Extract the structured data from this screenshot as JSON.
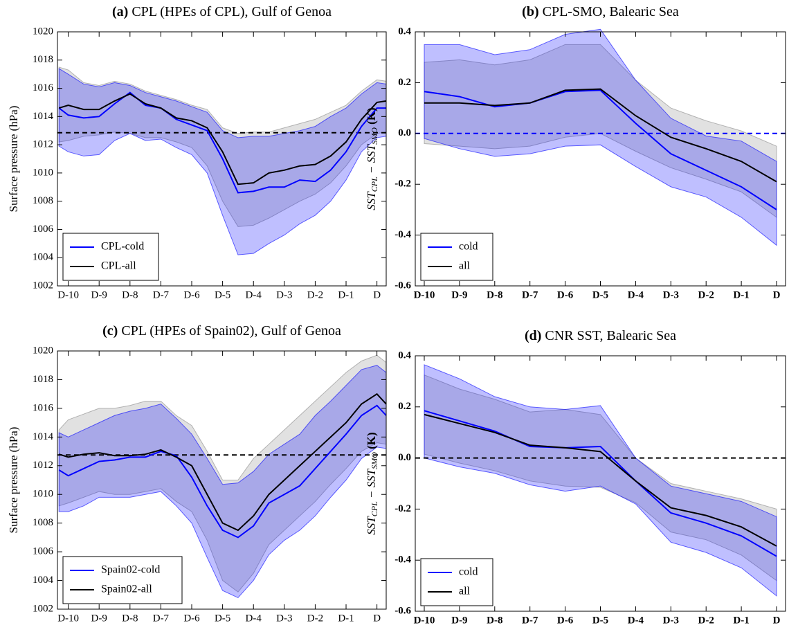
{
  "chart_data": [
    {
      "type": "line",
      "label": "(a)",
      "title": "CPL (HPEs of CPL), Gulf of Genoa",
      "ylabel": [
        "Surface pressure (hPa)"
      ],
      "x": [
        -10.3,
        -10,
        -9.5,
        -9,
        -8.5,
        -8,
        -7.5,
        -7,
        -6.5,
        -6,
        -5.5,
        -5,
        -4.5,
        -4,
        -3.5,
        -3,
        -2.5,
        -2,
        -1.5,
        -1,
        -0.5,
        0,
        0.3
      ],
      "xlim": [
        -10.35,
        0.3
      ],
      "xticks": [
        {
          "value": -10,
          "label": "D-10"
        },
        {
          "value": -9,
          "label": "D-9"
        },
        {
          "value": -8,
          "label": "D-8"
        },
        {
          "value": -7,
          "label": "D-7"
        },
        {
          "value": -6,
          "label": "D-6"
        },
        {
          "value": -5,
          "label": "D-5"
        },
        {
          "value": -4,
          "label": "D-4"
        },
        {
          "value": -3,
          "label": "D-3"
        },
        {
          "value": -2,
          "label": "D-2"
        },
        {
          "value": -1,
          "label": "D-1"
        },
        {
          "value": 0,
          "label": "D"
        }
      ],
      "ylim": [
        1002,
        1020
      ],
      "yticks": [
        1002,
        1004,
        1006,
        1008,
        1010,
        1012,
        1014,
        1016,
        1018,
        1020
      ],
      "hline": {
        "value": 1012.85,
        "color": "#000000"
      },
      "legend": "lower left",
      "bold_ticks": false,
      "series": [
        {
          "name": "CPL-cold",
          "color": "#0000ff",
          "band_color": "#0000ff",
          "values": [
            1014.6,
            1014.1,
            1013.9,
            1014.0,
            1014.9,
            1015.7,
            1014.8,
            1014.6,
            1013.8,
            1013.4,
            1013.0,
            1011.0,
            1008.6,
            1008.7,
            1009.0,
            1009.0,
            1009.5,
            1009.4,
            1010.2,
            1011.5,
            1013.3,
            1014.6,
            1014.6
          ],
          "lower": [
            1011.9,
            1011.5,
            1011.2,
            1011.3,
            1012.3,
            1012.8,
            1012.3,
            1012.4,
            1011.8,
            1011.3,
            1010.0,
            1007.0,
            1004.2,
            1004.3,
            1005.0,
            1005.6,
            1006.4,
            1007.0,
            1008.0,
            1009.5,
            1011.5,
            1012.5,
            1012.6
          ],
          "upper": [
            1017.4,
            1017.0,
            1016.3,
            1016.1,
            1016.4,
            1016.2,
            1015.7,
            1015.4,
            1015.1,
            1014.7,
            1014.3,
            1013.0,
            1012.5,
            1012.6,
            1012.6,
            1012.8,
            1013.0,
            1013.3,
            1014.0,
            1014.6,
            1015.6,
            1016.4,
            1016.3
          ]
        },
        {
          "name": "CPL-all",
          "color": "#000000",
          "band_color": "#888888",
          "values": [
            1014.6,
            1014.8,
            1014.5,
            1014.5,
            1015.1,
            1015.6,
            1014.9,
            1014.6,
            1013.9,
            1013.7,
            1013.2,
            1011.5,
            1009.2,
            1009.3,
            1010.0,
            1010.2,
            1010.5,
            1010.6,
            1011.2,
            1012.2,
            1013.8,
            1015.0,
            1015.1
          ],
          "lower": [
            1012.2,
            1012.3,
            1012.6,
            1012.7,
            1012.9,
            1012.8,
            1012.5,
            1012.5,
            1012.2,
            1011.8,
            1010.5,
            1008.0,
            1006.2,
            1006.3,
            1006.8,
            1007.4,
            1008.0,
            1008.5,
            1009.3,
            1010.5,
            1012.0,
            1012.8,
            1012.9
          ],
          "upper": [
            1017.5,
            1017.3,
            1016.4,
            1016.2,
            1016.5,
            1016.3,
            1015.8,
            1015.5,
            1015.2,
            1014.8,
            1014.5,
            1013.2,
            1012.8,
            1012.9,
            1012.9,
            1013.2,
            1013.5,
            1013.8,
            1014.3,
            1014.8,
            1015.8,
            1016.6,
            1016.5
          ]
        }
      ]
    },
    {
      "type": "line",
      "label": "(b)",
      "title": "CPL-SMO, Balearic Sea",
      "ylabel": [
        "SST",
        "CPL",
        " − SST",
        "SMO",
        " (K)"
      ],
      "categories": [
        "D-10",
        "D-9",
        "D-8",
        "D-7",
        "D-6",
        "D-5",
        "D-4",
        "D-3",
        "D-2",
        "D-1",
        "D"
      ],
      "ylim": [
        -0.6,
        0.4
      ],
      "yticks": [
        -0.6,
        -0.4,
        -0.2,
        {
          "value": 0,
          "label": "0.0"
        },
        0.2,
        0.4
      ],
      "hline": {
        "value": 0,
        "color": "#0000ff"
      },
      "legend": "lower left",
      "bold_ticks": true,
      "series": [
        {
          "name": "cold",
          "color": "#0000ff",
          "band_color": "#0000ff",
          "values": [
            0.165,
            0.145,
            0.105,
            0.12,
            0.165,
            0.17,
            0.04,
            -0.08,
            -0.145,
            -0.21,
            -0.3
          ],
          "lower": [
            -0.02,
            -0.06,
            -0.09,
            -0.08,
            -0.05,
            -0.045,
            -0.13,
            -0.21,
            -0.25,
            -0.33,
            -0.44
          ],
          "upper": [
            0.35,
            0.35,
            0.31,
            0.33,
            0.39,
            0.41,
            0.21,
            0.06,
            -0.01,
            -0.03,
            -0.11
          ]
        },
        {
          "name": "all",
          "color": "#000000",
          "band_color": "#888888",
          "values": [
            0.12,
            0.12,
            0.11,
            0.12,
            0.17,
            0.175,
            0.07,
            -0.015,
            -0.06,
            -0.11,
            -0.19
          ],
          "lower": [
            -0.04,
            -0.05,
            -0.06,
            -0.05,
            -0.015,
            0.0,
            -0.07,
            -0.135,
            -0.18,
            -0.23,
            -0.33
          ],
          "upper": [
            0.28,
            0.29,
            0.27,
            0.29,
            0.35,
            0.35,
            0.21,
            0.1,
            0.05,
            0.01,
            -0.05
          ]
        }
      ]
    },
    {
      "type": "line",
      "label": "(c)",
      "title": "CPL (HPEs of Spain02), Gulf of Genoa",
      "ylabel": [
        "Surface pressure (hPa)"
      ],
      "x": [
        -10.3,
        -10,
        -9.5,
        -9,
        -8.5,
        -8,
        -7.5,
        -7,
        -6.5,
        -6,
        -5.5,
        -5,
        -4.5,
        -4,
        -3.5,
        -3,
        -2.5,
        -2,
        -1.5,
        -1,
        -0.5,
        0,
        0.3
      ],
      "xlim": [
        -10.35,
        0.3
      ],
      "xticks": [
        {
          "value": -10,
          "label": "D-10"
        },
        {
          "value": -9,
          "label": "D-9"
        },
        {
          "value": -8,
          "label": "D-8"
        },
        {
          "value": -7,
          "label": "D-7"
        },
        {
          "value": -6,
          "label": "D-6"
        },
        {
          "value": -5,
          "label": "D-5"
        },
        {
          "value": -4,
          "label": "D-4"
        },
        {
          "value": -3,
          "label": "D-3"
        },
        {
          "value": -2,
          "label": "D-2"
        },
        {
          "value": -1,
          "label": "D-1"
        },
        {
          "value": 0,
          "label": "D"
        }
      ],
      "ylim": [
        1002,
        1020
      ],
      "yticks": [
        1002,
        1004,
        1006,
        1008,
        1010,
        1012,
        1014,
        1016,
        1018,
        1020
      ],
      "hline": {
        "value": 1012.75,
        "color": "#000000"
      },
      "legend": "lower left",
      "bold_ticks": false,
      "series": [
        {
          "name": "Spain02-cold",
          "color": "#0000ff",
          "band_color": "#0000ff",
          "values": [
            1011.7,
            1011.3,
            1011.8,
            1012.3,
            1012.4,
            1012.6,
            1012.6,
            1013.0,
            1012.7,
            1011.2,
            1009.2,
            1007.5,
            1007.0,
            1007.8,
            1009.4,
            1010.0,
            1010.6,
            1011.8,
            1013.0,
            1014.2,
            1015.5,
            1016.2,
            1015.5
          ],
          "lower": [
            1008.8,
            1008.8,
            1009.2,
            1009.8,
            1009.8,
            1009.8,
            1010.0,
            1010.2,
            1009.2,
            1008.0,
            1005.6,
            1003.3,
            1002.8,
            1004.0,
            1005.8,
            1006.8,
            1007.5,
            1008.5,
            1009.8,
            1011.0,
            1012.5,
            1013.3,
            1013.2
          ],
          "upper": [
            1014.3,
            1014.0,
            1014.5,
            1015.0,
            1015.5,
            1015.8,
            1016.0,
            1016.3,
            1015.3,
            1014.2,
            1012.5,
            1010.7,
            1010.8,
            1011.6,
            1012.8,
            1013.5,
            1014.2,
            1015.5,
            1016.5,
            1017.6,
            1018.7,
            1019.0,
            1018.5
          ]
        },
        {
          "name": "Spain02-all",
          "color": "#000000",
          "band_color": "#888888",
          "values": [
            1012.8,
            1012.6,
            1012.8,
            1012.9,
            1012.7,
            1012.7,
            1012.8,
            1013.1,
            1012.6,
            1012.0,
            1010.0,
            1008.0,
            1007.5,
            1008.5,
            1010.0,
            1011.0,
            1012.0,
            1013.0,
            1014.0,
            1015.0,
            1016.3,
            1017.0,
            1016.3
          ],
          "lower": [
            1009.2,
            1009.4,
            1009.8,
            1010.2,
            1010.0,
            1010.0,
            1010.2,
            1010.4,
            1009.5,
            1008.8,
            1006.8,
            1004.0,
            1003.2,
            1004.5,
            1006.5,
            1007.5,
            1008.5,
            1009.5,
            1010.7,
            1011.8,
            1013.0,
            1013.6,
            1013.5
          ],
          "upper": [
            1014.5,
            1015.2,
            1015.6,
            1016.0,
            1016.0,
            1016.2,
            1016.5,
            1016.5,
            1015.5,
            1014.8,
            1013.0,
            1011.0,
            1011.0,
            1012.5,
            1013.5,
            1014.5,
            1015.5,
            1016.5,
            1017.5,
            1018.5,
            1019.3,
            1019.7,
            1019.2
          ]
        }
      ]
    },
    {
      "type": "line",
      "label": "(d)",
      "title": "CNR SST, Balearic Sea",
      "ylabel": [
        "SST",
        "CPL",
        " − SST",
        "SMO",
        " (K)"
      ],
      "categories": [
        "D-10",
        "D-9",
        "D-8",
        "D-7",
        "D-6",
        "D-5",
        "D-4",
        "D-3",
        "D-2",
        "D-1",
        "D"
      ],
      "ylim": [
        -0.6,
        0.4
      ],
      "yticks": [
        -0.6,
        -0.4,
        -0.2,
        {
          "value": 0,
          "label": "0.0"
        },
        0.2,
        0.4
      ],
      "hline": {
        "value": 0,
        "color": "#000000"
      },
      "legend": "lower left",
      "bold_ticks": true,
      "series": [
        {
          "name": "cold",
          "color": "#0000ff",
          "band_color": "#0000ff",
          "values": [
            0.185,
            0.145,
            0.105,
            0.045,
            0.04,
            0.045,
            -0.09,
            -0.215,
            -0.255,
            -0.305,
            -0.385
          ],
          "lower": [
            0.0,
            -0.035,
            -0.06,
            -0.105,
            -0.13,
            -0.11,
            -0.18,
            -0.33,
            -0.37,
            -0.43,
            -0.54
          ],
          "upper": [
            0.365,
            0.31,
            0.24,
            0.2,
            0.19,
            0.205,
            0.0,
            -0.11,
            -0.14,
            -0.17,
            -0.23
          ]
        },
        {
          "name": "all",
          "color": "#000000",
          "band_color": "#888888",
          "values": [
            0.17,
            0.135,
            0.1,
            0.05,
            0.04,
            0.025,
            -0.09,
            -0.195,
            -0.225,
            -0.27,
            -0.345
          ],
          "lower": [
            0.015,
            -0.02,
            -0.05,
            -0.09,
            -0.11,
            -0.115,
            -0.175,
            -0.29,
            -0.32,
            -0.38,
            -0.48
          ],
          "upper": [
            0.325,
            0.27,
            0.23,
            0.18,
            0.19,
            0.17,
            0.0,
            -0.1,
            -0.13,
            -0.16,
            -0.2
          ]
        }
      ]
    }
  ]
}
